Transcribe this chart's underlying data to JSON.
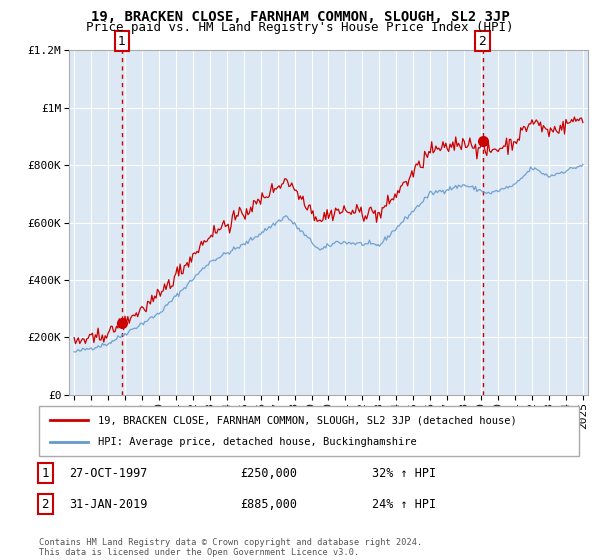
{
  "title": "19, BRACKEN CLOSE, FARNHAM COMMON, SLOUGH, SL2 3JP",
  "subtitle": "Price paid vs. HM Land Registry's House Price Index (HPI)",
  "copyright": "Contains HM Land Registry data © Crown copyright and database right 2024.\nThis data is licensed under the Open Government Licence v3.0.",
  "legend_line1": "19, BRACKEN CLOSE, FARNHAM COMMON, SLOUGH, SL2 3JP (detached house)",
  "legend_line2": "HPI: Average price, detached house, Buckinghamshire",
  "point1_label": "1",
  "point1_date": "27-OCT-1997",
  "point1_price": "£250,000",
  "point1_hpi": "32% ↑ HPI",
  "point2_label": "2",
  "point2_date": "31-JAN-2019",
  "point2_price": "£885,000",
  "point2_hpi": "24% ↑ HPI",
  "point1_x": 1997.83,
  "point1_y": 250000,
  "point2_x": 2019.08,
  "point2_y": 885000,
  "vline1_x": 1997.83,
  "vline2_x": 2019.08,
  "red_color": "#cc0000",
  "blue_color": "#6699cc",
  "vline_color": "#cc0000",
  "ylim": [
    0,
    1200000
  ],
  "xlim": [
    1994.7,
    2025.3
  ],
  "background_color": "#ffffff",
  "plot_bg_color": "#dce9f5",
  "grid_color": "#ffffff",
  "title_fontsize": 10,
  "subtitle_fontsize": 9,
  "axis_fontsize": 8
}
